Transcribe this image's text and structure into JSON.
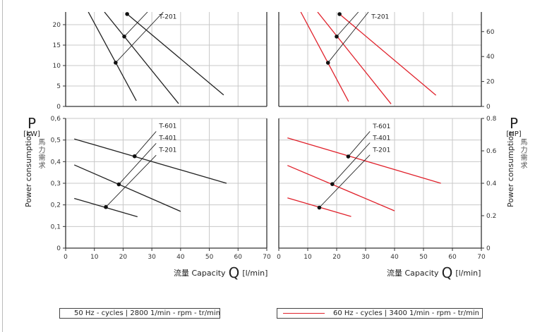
{
  "chart_data": [
    {
      "type": "line",
      "panel": "flow-head-50hz",
      "xlim": [
        0,
        70
      ],
      "ylim": [
        0,
        23.1
      ],
      "yticks": [
        0,
        5,
        10,
        15,
        20
      ],
      "ytick_labels": [
        "0",
        "5",
        "10",
        "15",
        "20"
      ],
      "grid": true,
      "color": "#222222",
      "series": [
        {
          "x": [
            7.9,
            24.6
          ],
          "y": [
            23.1,
            1.4
          ]
        },
        {
          "x": [
            13.5,
            39.3
          ],
          "y": [
            23.1,
            0.7
          ]
        },
        {
          "x": [
            21.4,
            55.0
          ],
          "y": [
            22.6,
            2.8
          ]
        }
      ],
      "points": [
        {
          "x": 17.4,
          "y": 10.7
        },
        {
          "x": 20.4,
          "y": 17.1
        },
        {
          "x": 21.4,
          "y": 22.6
        }
      ],
      "leaders": [
        {
          "from": [
            17.4,
            10.7
          ],
          "to": [
            34.0,
            23.1
          ]
        },
        {
          "from": [
            20.4,
            17.1
          ],
          "to": [
            28.5,
            23.1
          ]
        }
      ],
      "annotations": [
        {
          "text": "T-201",
          "x": 32.5,
          "y": 22.0
        }
      ]
    },
    {
      "type": "line",
      "panel": "flow-head-60hz",
      "xlim": [
        0,
        70
      ],
      "ylim": [
        0,
        75.7
      ],
      "yticks": [
        0,
        20,
        40,
        60
      ],
      "ytick_labels": [
        "0",
        "20",
        "40",
        "60"
      ],
      "grid": true,
      "color": "#e0212b",
      "series": [
        {
          "x": [
            7.6,
            24.1
          ],
          "y": [
            75.7,
            4
          ]
        },
        {
          "x": [
            13.4,
            38.8
          ],
          "y": [
            75.7,
            2
          ]
        },
        {
          "x": [
            21.0,
            54.3
          ],
          "y": [
            74,
            9
          ]
        }
      ],
      "points": [
        {
          "x": 17.0,
          "y": 35
        },
        {
          "x": 20.0,
          "y": 56
        },
        {
          "x": 21.0,
          "y": 74
        }
      ],
      "leaders": [
        {
          "from": [
            17.0,
            35
          ],
          "to": [
            31.0,
            75.7
          ]
        },
        {
          "from": [
            20.0,
            56
          ],
          "to": [
            27.5,
            75.7
          ]
        }
      ],
      "annotations": [
        {
          "text": "T-201",
          "x": 32.0,
          "y": 72.0
        }
      ]
    },
    {
      "type": "line",
      "panel": "power-50hz",
      "xlim": [
        0,
        70
      ],
      "ylim": [
        0,
        0.6
      ],
      "xticks": [
        0,
        10,
        20,
        30,
        40,
        50,
        60,
        70
      ],
      "xtick_labels": [
        "0",
        "10",
        "20",
        "30",
        "40",
        "50",
        "60",
        "70"
      ],
      "yticks": [
        0,
        0.1,
        0.2,
        0.3,
        0.4,
        0.5,
        0.6
      ],
      "ytick_labels": [
        "0",
        "0,1",
        "0,2",
        "0,3",
        "0,4",
        "0,5",
        "0,6"
      ],
      "grid": true,
      "color": "#222222",
      "xlabel": "流量 Capacity",
      "xsymbol": "Q",
      "xunit": "[l/min]",
      "ylabel": "Power consumption",
      "ysymbol": "P",
      "yunit": "[kW]",
      "ylabel_cjk": "馬力需求",
      "series": [
        {
          "x": [
            3,
            56
          ],
          "y": [
            0.505,
            0.3
          ]
        },
        {
          "x": [
            3,
            40
          ],
          "y": [
            0.385,
            0.17
          ]
        },
        {
          "x": [
            3,
            25
          ],
          "y": [
            0.23,
            0.145
          ]
        }
      ],
      "points": [
        {
          "x": 24,
          "y": 0.425
        },
        {
          "x": 18.5,
          "y": 0.295
        },
        {
          "x": 14,
          "y": 0.19
        }
      ],
      "leaders": [
        {
          "from": [
            24,
            0.425
          ],
          "to": [
            31.5,
            0.54
          ]
        },
        {
          "from": [
            18.5,
            0.295
          ],
          "to": [
            31.5,
            0.485
          ]
        },
        {
          "from": [
            14,
            0.19
          ],
          "to": [
            31.5,
            0.43
          ]
        }
      ],
      "annotations": [
        {
          "text": "T-601",
          "x": 32.5,
          "y": 0.565
        },
        {
          "text": "T-401",
          "x": 32.5,
          "y": 0.51
        },
        {
          "text": "T-201",
          "x": 32.5,
          "y": 0.455
        }
      ]
    },
    {
      "type": "line",
      "panel": "power-60hz",
      "xlim": [
        0,
        70
      ],
      "ylim": [
        0,
        0.8
      ],
      "xticks": [
        0,
        10,
        20,
        30,
        40,
        50,
        60,
        70
      ],
      "xtick_labels": [
        "0",
        "10",
        "20",
        "30",
        "40",
        "50",
        "60",
        "70"
      ],
      "yticks": [
        0,
        0.2,
        0.4,
        0.6,
        0.8
      ],
      "ytick_labels": [
        "0",
        "0.2",
        "0.4",
        "0.6",
        "0.8"
      ],
      "grid": true,
      "color": "#e0212b",
      "xlabel": "流量 Capacity",
      "xsymbol": "Q",
      "xunit": "[l/min]",
      "ylabel": "Power consumption",
      "ysymbol": "P",
      "yunit": "[HP]",
      "ylabel_cjk": "馬力需求",
      "series": [
        {
          "x": [
            3,
            56
          ],
          "y": [
            0.68,
            0.4
          ]
        },
        {
          "x": [
            3,
            40
          ],
          "y": [
            0.51,
            0.23
          ]
        },
        {
          "x": [
            3,
            25
          ],
          "y": [
            0.31,
            0.195
          ]
        }
      ],
      "points": [
        {
          "x": 24,
          "y": 0.565
        },
        {
          "x": 18.5,
          "y": 0.395
        },
        {
          "x": 14,
          "y": 0.25
        }
      ],
      "leaders": [
        {
          "from": [
            24,
            0.565
          ],
          "to": [
            31.5,
            0.72
          ]
        },
        {
          "from": [
            18.5,
            0.395
          ],
          "to": [
            31.5,
            0.65
          ]
        },
        {
          "from": [
            14,
            0.25
          ],
          "to": [
            31.5,
            0.575
          ]
        }
      ],
      "annotations": [
        {
          "text": "T-601",
          "x": 32.5,
          "y": 0.753
        },
        {
          "text": "T-401",
          "x": 32.5,
          "y": 0.68
        },
        {
          "text": "T-201",
          "x": 32.5,
          "y": 0.607
        }
      ]
    }
  ],
  "legend": [
    {
      "label": "50 Hz - cycles | 2800 1/min - rpm - tr/min",
      "color": "#222222"
    },
    {
      "label": "60 Hz - cycles | 3400 1/min - rpm - tr/min",
      "color": "#e0212b"
    }
  ]
}
